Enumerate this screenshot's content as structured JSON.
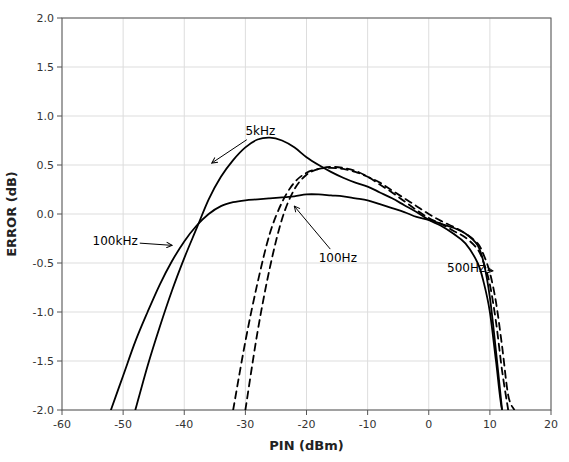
{
  "chart_data": {
    "type": "line",
    "xlabel": "PIN (dBm)",
    "ylabel": "ERROR (dB)",
    "xlim": [
      -60,
      20
    ],
    "ylim": [
      -2.0,
      2.0
    ],
    "xticks": [
      -60,
      -50,
      -40,
      -30,
      -20,
      -10,
      0,
      10,
      20
    ],
    "yticks": [
      {
        "value": -2.0,
        "label": "-2.0"
      },
      {
        "value": -1.5,
        "label": "-1.5"
      },
      {
        "value": -1.0,
        "label": "-1.0"
      },
      {
        "value": -0.5,
        "label": "-0.5"
      },
      {
        "value": 0.0,
        "label": "0.0"
      },
      {
        "value": 0.5,
        "label": "0.5"
      },
      {
        "value": 1.0,
        "label": "1.0"
      },
      {
        "value": 1.5,
        "label": "1.5"
      },
      {
        "value": 2.0,
        "label": "2.0"
      }
    ],
    "grid": true,
    "series": [
      {
        "color": "#000000",
        "line_style": "solid",
        "x": [
          -48,
          -46,
          -44,
          -42,
          -40,
          -38,
          -36,
          -34,
          -32,
          -30,
          -28,
          -26,
          -24,
          -22,
          -20,
          -18,
          -16,
          -14,
          -12,
          -10,
          -8,
          -6,
          -4,
          -2,
          0,
          2,
          4,
          6,
          8,
          9,
          10,
          11,
          12,
          13
        ],
        "values": [
          -2.0,
          -1.55,
          -1.15,
          -0.78,
          -0.45,
          -0.15,
          0.15,
          0.38,
          0.55,
          0.68,
          0.76,
          0.78,
          0.75,
          0.68,
          0.58,
          0.5,
          0.43,
          0.37,
          0.32,
          0.28,
          0.22,
          0.16,
          0.09,
          0.02,
          -0.06,
          -0.12,
          -0.2,
          -0.3,
          -0.5,
          -0.7,
          -1.0,
          -1.5,
          -2.0,
          -2.0
        ]
      },
      {
        "color": "#000000",
        "line_style": "solid",
        "x": [
          -52,
          -50,
          -48,
          -46,
          -44,
          -42,
          -40,
          -38,
          -36,
          -34,
          -32,
          -30,
          -28,
          -26,
          -24,
          -22,
          -20,
          -18,
          -16,
          -14,
          -12,
          -10,
          -8,
          -6,
          -4,
          -2,
          0,
          2,
          4,
          6,
          8,
          9,
          10,
          11,
          12
        ],
        "values": [
          -2.0,
          -1.65,
          -1.3,
          -1.0,
          -0.72,
          -0.48,
          -0.28,
          -0.12,
          0.0,
          0.08,
          0.12,
          0.14,
          0.15,
          0.16,
          0.17,
          0.18,
          0.2,
          0.2,
          0.19,
          0.18,
          0.16,
          0.14,
          0.1,
          0.06,
          0.02,
          -0.03,
          -0.06,
          -0.1,
          -0.14,
          -0.2,
          -0.32,
          -0.5,
          -0.85,
          -1.4,
          -2.0
        ]
      },
      {
        "color": "#000000",
        "line_style": "dashed",
        "x": [
          -32,
          -30,
          -28,
          -26,
          -24,
          -22,
          -20,
          -18,
          -16,
          -14,
          -12,
          -10,
          -8,
          -6,
          -4,
          -2,
          0,
          2,
          4,
          6,
          8,
          9,
          10,
          11,
          12,
          13,
          14
        ],
        "values": [
          -2.0,
          -1.3,
          -0.7,
          -0.2,
          0.12,
          0.32,
          0.42,
          0.46,
          0.47,
          0.46,
          0.43,
          0.38,
          0.32,
          0.24,
          0.16,
          0.08,
          0.0,
          -0.07,
          -0.13,
          -0.2,
          -0.3,
          -0.42,
          -0.6,
          -0.9,
          -1.35,
          -1.85,
          -2.0
        ]
      },
      {
        "color": "#000000",
        "line_style": "dashed",
        "x": [
          -30,
          -28,
          -26,
          -24,
          -22,
          -20,
          -18,
          -16,
          -14,
          -12,
          -10,
          -8,
          -6,
          -4,
          -2,
          0,
          2,
          4,
          6,
          8,
          9,
          10,
          11,
          12,
          13
        ],
        "values": [
          -2.0,
          -1.2,
          -0.55,
          -0.05,
          0.25,
          0.4,
          0.46,
          0.48,
          0.47,
          0.44,
          0.38,
          0.3,
          0.22,
          0.13,
          0.04,
          -0.04,
          -0.1,
          -0.17,
          -0.24,
          -0.36,
          -0.5,
          -0.72,
          -1.1,
          -1.6,
          -2.0
        ]
      }
    ],
    "annotations": [
      {
        "text": "5kHz",
        "x": -35.5,
        "y": 0.52,
        "text_x": -30,
        "text_y": 0.85
      },
      {
        "text": "100kHz",
        "x": -42,
        "y": -0.32,
        "text_x": -55,
        "text_y": -0.28
      },
      {
        "text": "100Hz",
        "x": -22,
        "y": 0.08,
        "text_x": -18,
        "text_y": -0.45
      },
      {
        "text": "500Hz",
        "x": 10.5,
        "y": -0.58,
        "text_x": 3,
        "text_y": -0.55
      }
    ]
  }
}
